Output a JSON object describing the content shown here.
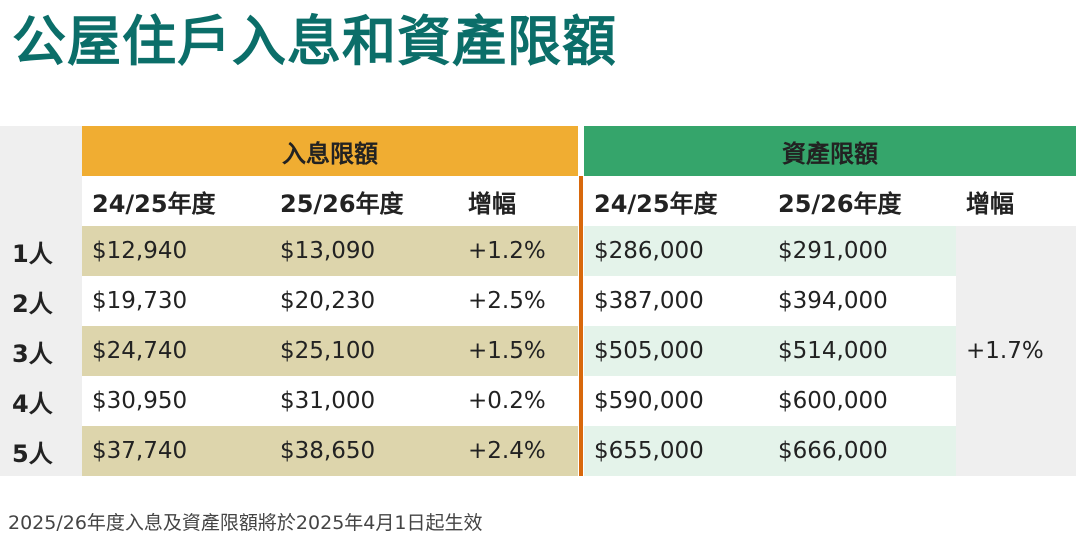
{
  "title": "公屋住戶入息和資產限額",
  "table": {
    "group_income": "入息限額",
    "group_asset": "資產限額",
    "headers": [
      "24/25年度",
      "25/26年度",
      "增幅",
      "24/25年度",
      "25/26年度",
      "增幅"
    ],
    "asset_increase_all": "+1.7%",
    "rows": [
      {
        "label": "1人",
        "inc_2425": "$12,940",
        "inc_2526": "$13,090",
        "inc_pct": "+1.2%",
        "ast_2425": "$286,000",
        "ast_2526": "$291,000"
      },
      {
        "label": "2人",
        "inc_2425": "$19,730",
        "inc_2526": "$20,230",
        "inc_pct": "+2.5%",
        "ast_2425": "$387,000",
        "ast_2526": "$394,000"
      },
      {
        "label": "3人",
        "inc_2425": "$24,740",
        "inc_2526": "$25,100",
        "inc_pct": "+1.5%",
        "ast_2425": "$505,000",
        "ast_2526": "$514,000"
      },
      {
        "label": "4人",
        "inc_2425": "$30,950",
        "inc_2526": "$31,000",
        "inc_pct": "+0.2%",
        "ast_2425": "$590,000",
        "ast_2526": "$600,000"
      },
      {
        "label": "5人",
        "inc_2425": "$37,740",
        "inc_2526": "$38,650",
        "inc_pct": "+2.4%",
        "ast_2425": "$655,000",
        "ast_2526": "$666,000"
      }
    ]
  },
  "footnote": "2025/26年度入息及資產限額將於2025年4月1日起生效",
  "colors": {
    "title": "#0b6e69",
    "income_header": "#f0ad32",
    "asset_header": "#35a56b",
    "income_band": "#ddd5ac",
    "asset_band": "#e4f3ea",
    "divider": "#d8680c"
  }
}
